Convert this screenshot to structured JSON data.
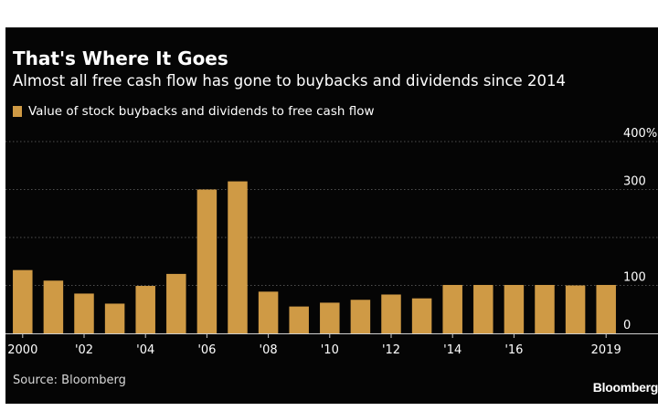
{
  "colors": {
    "bar": "#cf9a45",
    "grid": "#6a6a6a",
    "text": "#ffffff",
    "background": "#050505"
  },
  "source": "Source: Bloomberg",
  "logo": "Bloomberg",
  "chart_data": {
    "type": "bar",
    "title": "That's Where It Goes",
    "subtitle": "Almost all free cash flow has gone to buybacks and dividends since 2014",
    "xlabel": "",
    "ylabel": "",
    "legend_position": "top-left",
    "grid": true,
    "ylim": [
      0,
      400
    ],
    "y_ticks": [
      {
        "value": 0,
        "label": "0"
      },
      {
        "value": 100,
        "label": "100"
      },
      {
        "value": 300,
        "label": "300"
      },
      {
        "value": 400,
        "label": "400%"
      }
    ],
    "categories": [
      "2000",
      "2001",
      "2002",
      "2003",
      "2004",
      "2005",
      "2006",
      "2007",
      "2008",
      "2009",
      "2010",
      "2011",
      "2012",
      "2013",
      "2014",
      "2015",
      "2016",
      "2017",
      "2018",
      "2019"
    ],
    "x_tick_labels": [
      {
        "category": "2000",
        "label": "2000"
      },
      {
        "category": "2002",
        "label": "'02"
      },
      {
        "category": "2004",
        "label": "'04"
      },
      {
        "category": "2006",
        "label": "'06"
      },
      {
        "category": "2008",
        "label": "'08"
      },
      {
        "category": "2010",
        "label": "'10"
      },
      {
        "category": "2012",
        "label": "'12"
      },
      {
        "category": "2014",
        "label": "'14"
      },
      {
        "category": "2016",
        "label": "'16"
      },
      {
        "category": "2019",
        "label": "2019"
      }
    ],
    "series": [
      {
        "name": "Value of stock buybacks and dividends to free cash flow",
        "values": [
          132,
          110,
          83,
          62,
          99,
          124,
          300,
          317,
          87,
          56,
          64,
          70,
          81,
          73,
          101,
          101,
          101,
          101,
          100,
          101
        ]
      }
    ]
  }
}
